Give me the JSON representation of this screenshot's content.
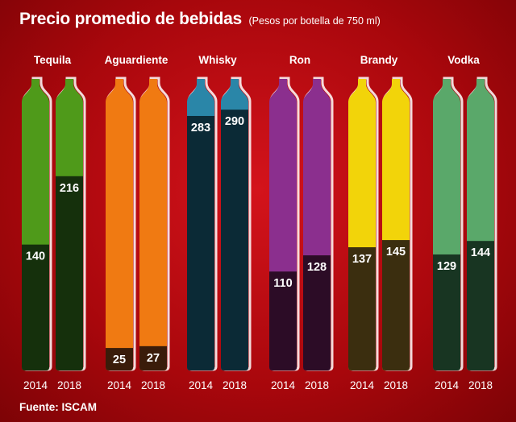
{
  "title": "Precio promedio de bebidas",
  "subtitle": "(Pesos por botella de 750 ml)",
  "source": "Fuente: ISCAM",
  "chart_data": {
    "type": "bar",
    "title": "Precio promedio de bebidas",
    "subtitle": "(Pesos por botella de 750 ml)",
    "years": [
      "2014",
      "2018"
    ],
    "ylim": [
      0,
      300
    ],
    "grid": false,
    "legend": "none",
    "categories": [
      {
        "name": "Tequila",
        "values": [
          140,
          216
        ],
        "color": "#4f9a1a",
        "fill": "#15300c"
      },
      {
        "name": "Aguardiente",
        "values": [
          25,
          27
        ],
        "color": "#f07a12",
        "fill": "#3a1c0a"
      },
      {
        "name": "Whisky",
        "values": [
          283,
          290
        ],
        "color": "#2a86a8",
        "fill": "#0b2a36"
      },
      {
        "name": "Ron",
        "values": [
          110,
          128
        ],
        "color": "#8b2f8e",
        "fill": "#2c0c26"
      },
      {
        "name": "Brandy",
        "values": [
          137,
          145
        ],
        "color": "#f2d40a",
        "fill": "#3b2e0f"
      },
      {
        "name": "Vodka",
        "values": [
          129,
          144
        ],
        "color": "#5aa86a",
        "fill": "#183522"
      }
    ]
  }
}
